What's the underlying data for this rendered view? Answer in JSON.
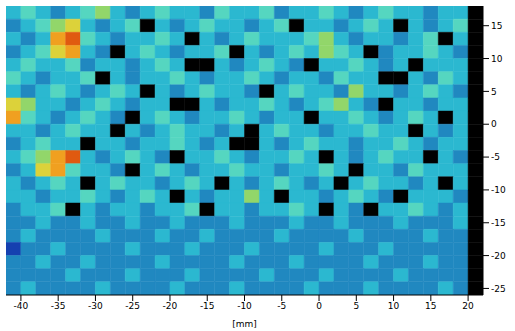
{
  "chart_data": {
    "type": "heatmap",
    "x_label": "[mm]",
    "xlim": [
      -42,
      22
    ],
    "ylim": [
      -26,
      18
    ],
    "xticks": [
      -40,
      -35,
      -30,
      -25,
      -20,
      -15,
      -10,
      -5,
      0,
      5,
      10,
      15,
      20
    ],
    "yticks": [
      15,
      10,
      5,
      0,
      -5,
      -10,
      -15,
      -20,
      -25
    ],
    "x_edges": [
      -42,
      -40,
      -38,
      -36,
      -34,
      -32,
      -30,
      -28,
      -26,
      -24,
      -22,
      -20,
      -18,
      -16,
      -14,
      -12,
      -10,
      -8,
      -6,
      -4,
      -2,
      0,
      2,
      4,
      6,
      8,
      10,
      12,
      14,
      16,
      18,
      20,
      22
    ],
    "y_edges": [
      18,
      16,
      14,
      12,
      10,
      8,
      6,
      4,
      2,
      0,
      -2,
      -4,
      -6,
      -8,
      -10,
      -12,
      -14,
      -16,
      -18,
      -20,
      -22,
      -24,
      -26
    ],
    "cells": [
      [
        4,
        5,
        4,
        3,
        4,
        5,
        6,
        4,
        3,
        4,
        5,
        4,
        4,
        3,
        5,
        4,
        4,
        5,
        3,
        4,
        4,
        5,
        4,
        3,
        4,
        5,
        4,
        4,
        3,
        4,
        4,
        0
      ],
      [
        3,
        4,
        5,
        6,
        7,
        4,
        3,
        4,
        5,
        0,
        4,
        3,
        4,
        5,
        4,
        4,
        3,
        4,
        5,
        0,
        4,
        4,
        3,
        4,
        5,
        4,
        0,
        4,
        3,
        4,
        5,
        0
      ],
      [
        4,
        3,
        4,
        8,
        9,
        5,
        4,
        3,
        4,
        4,
        5,
        4,
        0,
        4,
        3,
        4,
        5,
        4,
        4,
        4,
        5,
        6,
        4,
        3,
        4,
        4,
        3,
        4,
        5,
        0,
        4,
        0
      ],
      [
        3,
        4,
        5,
        7,
        8,
        4,
        3,
        0,
        4,
        5,
        4,
        3,
        4,
        4,
        5,
        0,
        4,
        3,
        4,
        5,
        4,
        6,
        5,
        4,
        0,
        3,
        4,
        4,
        5,
        4,
        3,
        0
      ],
      [
        4,
        5,
        4,
        4,
        5,
        3,
        4,
        4,
        3,
        4,
        5,
        4,
        0,
        0,
        4,
        3,
        4,
        5,
        4,
        3,
        0,
        4,
        4,
        5,
        4,
        3,
        4,
        0,
        4,
        4,
        4,
        0
      ],
      [
        5,
        4,
        3,
        4,
        4,
        5,
        0,
        4,
        3,
        4,
        4,
        5,
        4,
        3,
        4,
        4,
        5,
        4,
        3,
        4,
        4,
        3,
        5,
        4,
        4,
        0,
        0,
        4,
        3,
        5,
        4,
        0
      ],
      [
        4,
        3,
        4,
        5,
        4,
        3,
        4,
        5,
        4,
        0,
        4,
        3,
        4,
        5,
        4,
        4,
        3,
        0,
        4,
        5,
        4,
        4,
        3,
        6,
        4,
        4,
        3,
        4,
        5,
        4,
        3,
        0
      ],
      [
        7,
        6,
        4,
        4,
        3,
        4,
        5,
        4,
        3,
        4,
        4,
        0,
        0,
        4,
        3,
        4,
        4,
        5,
        4,
        3,
        4,
        5,
        6,
        4,
        3,
        0,
        4,
        4,
        3,
        4,
        4,
        0
      ],
      [
        8,
        5,
        4,
        3,
        4,
        5,
        4,
        3,
        0,
        4,
        5,
        4,
        3,
        4,
        4,
        5,
        4,
        3,
        4,
        4,
        0,
        4,
        4,
        5,
        4,
        3,
        4,
        5,
        4,
        0,
        4,
        0
      ],
      [
        4,
        4,
        3,
        4,
        5,
        4,
        4,
        0,
        4,
        3,
        4,
        5,
        4,
        4,
        3,
        4,
        0,
        4,
        5,
        4,
        4,
        3,
        4,
        4,
        5,
        4,
        4,
        0,
        4,
        3,
        4,
        0
      ],
      [
        3,
        4,
        5,
        4,
        4,
        0,
        4,
        4,
        3,
        4,
        4,
        5,
        4,
        3,
        4,
        0,
        0,
        4,
        3,
        4,
        5,
        4,
        4,
        3,
        4,
        4,
        5,
        4,
        3,
        4,
        4,
        0
      ],
      [
        4,
        5,
        6,
        8,
        9,
        4,
        3,
        4,
        5,
        4,
        3,
        0,
        4,
        4,
        5,
        4,
        3,
        4,
        4,
        5,
        4,
        0,
        4,
        3,
        4,
        5,
        4,
        4,
        0,
        4,
        3,
        0
      ],
      [
        3,
        4,
        7,
        8,
        5,
        4,
        4,
        3,
        0,
        4,
        5,
        4,
        3,
        4,
        4,
        5,
        4,
        4,
        3,
        4,
        4,
        5,
        4,
        0,
        4,
        4,
        3,
        5,
        4,
        4,
        4,
        0
      ],
      [
        4,
        3,
        4,
        5,
        4,
        0,
        4,
        5,
        4,
        4,
        3,
        4,
        5,
        4,
        0,
        4,
        3,
        4,
        5,
        4,
        3,
        4,
        0,
        4,
        5,
        4,
        4,
        3,
        4,
        0,
        4,
        0
      ],
      [
        4,
        4,
        3,
        4,
        4,
        5,
        4,
        3,
        4,
        5,
        4,
        0,
        4,
        3,
        4,
        4,
        6,
        4,
        0,
        4,
        4,
        3,
        4,
        5,
        4,
        3,
        0,
        4,
        4,
        4,
        3,
        0
      ],
      [
        3,
        4,
        4,
        5,
        0,
        4,
        3,
        4,
        4,
        3,
        4,
        4,
        5,
        0,
        4,
        4,
        3,
        4,
        4,
        5,
        4,
        0,
        4,
        3,
        0,
        4,
        4,
        5,
        4,
        3,
        4,
        0
      ],
      [
        3,
        3,
        4,
        3,
        3,
        4,
        3,
        3,
        4,
        3,
        3,
        4,
        3,
        3,
        3,
        4,
        3,
        3,
        3,
        4,
        3,
        3,
        4,
        3,
        3,
        3,
        4,
        3,
        3,
        3,
        4,
        0
      ],
      [
        3,
        4,
        3,
        3,
        3,
        3,
        4,
        3,
        3,
        3,
        4,
        3,
        3,
        4,
        3,
        3,
        3,
        3,
        4,
        3,
        3,
        3,
        3,
        4,
        3,
        3,
        3,
        3,
        4,
        3,
        3,
        0
      ],
      [
        2,
        3,
        3,
        4,
        3,
        3,
        3,
        3,
        4,
        3,
        3,
        3,
        4,
        3,
        3,
        3,
        4,
        3,
        3,
        3,
        3,
        4,
        3,
        3,
        3,
        4,
        3,
        3,
        3,
        3,
        3,
        0
      ],
      [
        3,
        3,
        4,
        3,
        3,
        4,
        3,
        3,
        3,
        3,
        4,
        3,
        3,
        3,
        3,
        4,
        3,
        3,
        3,
        4,
        3,
        3,
        3,
        3,
        4,
        3,
        3,
        3,
        4,
        3,
        3,
        0
      ],
      [
        3,
        3,
        3,
        3,
        4,
        3,
        3,
        3,
        4,
        3,
        3,
        3,
        4,
        3,
        3,
        3,
        3,
        4,
        3,
        3,
        3,
        4,
        3,
        3,
        3,
        3,
        4,
        3,
        3,
        3,
        3,
        0
      ],
      [
        3,
        4,
        3,
        3,
        3,
        3,
        4,
        3,
        3,
        3,
        3,
        4,
        3,
        3,
        3,
        4,
        3,
        3,
        3,
        3,
        4,
        3,
        3,
        3,
        4,
        3,
        3,
        3,
        3,
        4,
        3,
        0
      ]
    ]
  }
}
